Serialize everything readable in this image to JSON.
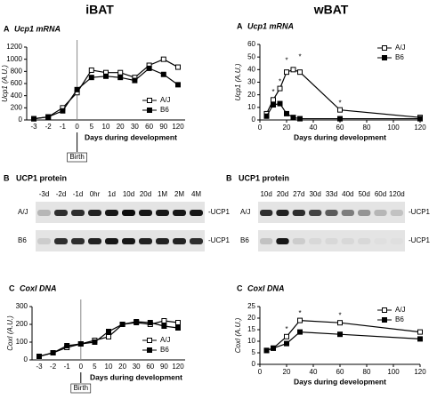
{
  "columns": [
    "iBAT",
    "wBAT"
  ],
  "chart_data": [
    {
      "type": "line",
      "panel": "A",
      "title": "Ucp1 mRNA",
      "xlabel": "Days during development",
      "ylabel": "Ucp1 (A.U.)",
      "categories": [
        "-3",
        "-2",
        "-1",
        "0",
        "5",
        "10",
        "20",
        "30",
        "60",
        "90",
        "120"
      ],
      "ylim": [
        0,
        1200
      ],
      "yticks": [
        0,
        200,
        400,
        600,
        800,
        1000,
        1200
      ],
      "legend": "lower right",
      "series": [
        {
          "name": "A/J",
          "color": "#000000",
          "marker_fill": "#ffffff",
          "values": [
            20,
            50,
            200,
            450,
            820,
            780,
            780,
            700,
            900,
            1000,
            870
          ]
        },
        {
          "name": "B6",
          "color": "#000000",
          "marker_fill": "#000000",
          "values": [
            20,
            50,
            150,
            500,
            700,
            720,
            700,
            650,
            850,
            750,
            580
          ]
        }
      ],
      "annotations": [
        {
          "text": "Birth",
          "at": "0"
        }
      ]
    },
    {
      "type": "line",
      "panel": "A",
      "title": "Ucp1 mRNA",
      "xlabel": "Days during development",
      "ylabel": "Ucp1 (A.U.)",
      "x": [
        5,
        10,
        15,
        20,
        25,
        30,
        60,
        120
      ],
      "xlim": [
        0,
        120
      ],
      "xticks": [
        0,
        20,
        40,
        60,
        80,
        100,
        120
      ],
      "ylim": [
        0,
        60
      ],
      "yticks": [
        0,
        10,
        20,
        30,
        40,
        50,
        60
      ],
      "legend": "upper right",
      "series": [
        {
          "name": "A/J",
          "color": "#000000",
          "marker_fill": "#ffffff",
          "values": [
            5,
            16,
            25,
            38,
            40,
            38,
            8,
            2
          ]
        },
        {
          "name": "B6",
          "color": "#000000",
          "marker_fill": "#000000",
          "values": [
            3,
            12,
            13,
            5,
            2,
            1,
            1,
            1
          ]
        }
      ],
      "annotations": [
        {
          "text": "*",
          "x": 10,
          "y": 22
        },
        {
          "text": "*",
          "x": 15,
          "y": 30
        },
        {
          "text": "*",
          "x": 20,
          "y": 47
        },
        {
          "text": "*",
          "x": 30,
          "y": 50
        },
        {
          "text": "*",
          "x": 60,
          "y": 13
        }
      ]
    },
    {
      "type": "line",
      "panel": "C",
      "title": "CoxI DNA",
      "xlabel": "Days during development",
      "ylabel": "CoxI (A.U.)",
      "categories": [
        "-3",
        "-2",
        "-1",
        "0",
        "5",
        "10",
        "20",
        "30",
        "60",
        "90",
        "120"
      ],
      "ylim": [
        0,
        300
      ],
      "yticks": [
        0,
        100,
        200,
        300
      ],
      "legend": "lower right",
      "series": [
        {
          "name": "A/J",
          "color": "#000000",
          "marker_fill": "#ffffff",
          "values": [
            20,
            40,
            70,
            90,
            110,
            130,
            200,
            210,
            200,
            220,
            210
          ]
        },
        {
          "name": "B6",
          "color": "#000000",
          "marker_fill": "#000000",
          "values": [
            20,
            40,
            80,
            90,
            100,
            160,
            200,
            215,
            210,
            190,
            180
          ]
        }
      ],
      "annotations": [
        {
          "text": "Birth",
          "at": "0"
        }
      ]
    },
    {
      "type": "line",
      "panel": "C",
      "title": "CoxI DNA",
      "xlabel": "Days during development",
      "ylabel": "CoxI (A.U.)",
      "x": [
        5,
        10,
        20,
        30,
        60,
        120
      ],
      "xlim": [
        0,
        120
      ],
      "xticks": [
        0,
        20,
        40,
        60,
        80,
        100,
        120
      ],
      "ylim": [
        0,
        25
      ],
      "yticks": [
        0,
        5,
        10,
        15,
        20,
        25
      ],
      "legend": "upper right",
      "series": [
        {
          "name": "A/J",
          "color": "#000000",
          "marker_fill": "#ffffff",
          "values": [
            6,
            7,
            12,
            19,
            18,
            14
          ]
        },
        {
          "name": "B6",
          "color": "#000000",
          "marker_fill": "#000000",
          "values": [
            6,
            7,
            9,
            14,
            13,
            11
          ]
        }
      ],
      "annotations": [
        {
          "text": "*",
          "x": 20,
          "y": 15
        },
        {
          "text": "*",
          "x": 30,
          "y": 22
        },
        {
          "text": "*",
          "x": 60,
          "y": 21
        }
      ]
    }
  ],
  "blots": [
    {
      "panel": "B",
      "title": "UCP1 protein",
      "lanes": [
        "-3d",
        "-2d",
        "-1d",
        "0hr",
        "1d",
        "10d",
        "20d",
        "1M",
        "2M",
        "4M"
      ],
      "rows": [
        "A/J",
        "B6"
      ],
      "band_label": "-UCP1"
    },
    {
      "panel": "B",
      "title": "UCP1 protein",
      "lanes": [
        "10d",
        "20d",
        "27d",
        "30d",
        "33d",
        "40d",
        "50d",
        "60d",
        "120d"
      ],
      "rows": [
        "A/J",
        "B6"
      ],
      "band_label": "-UCP1"
    }
  ]
}
